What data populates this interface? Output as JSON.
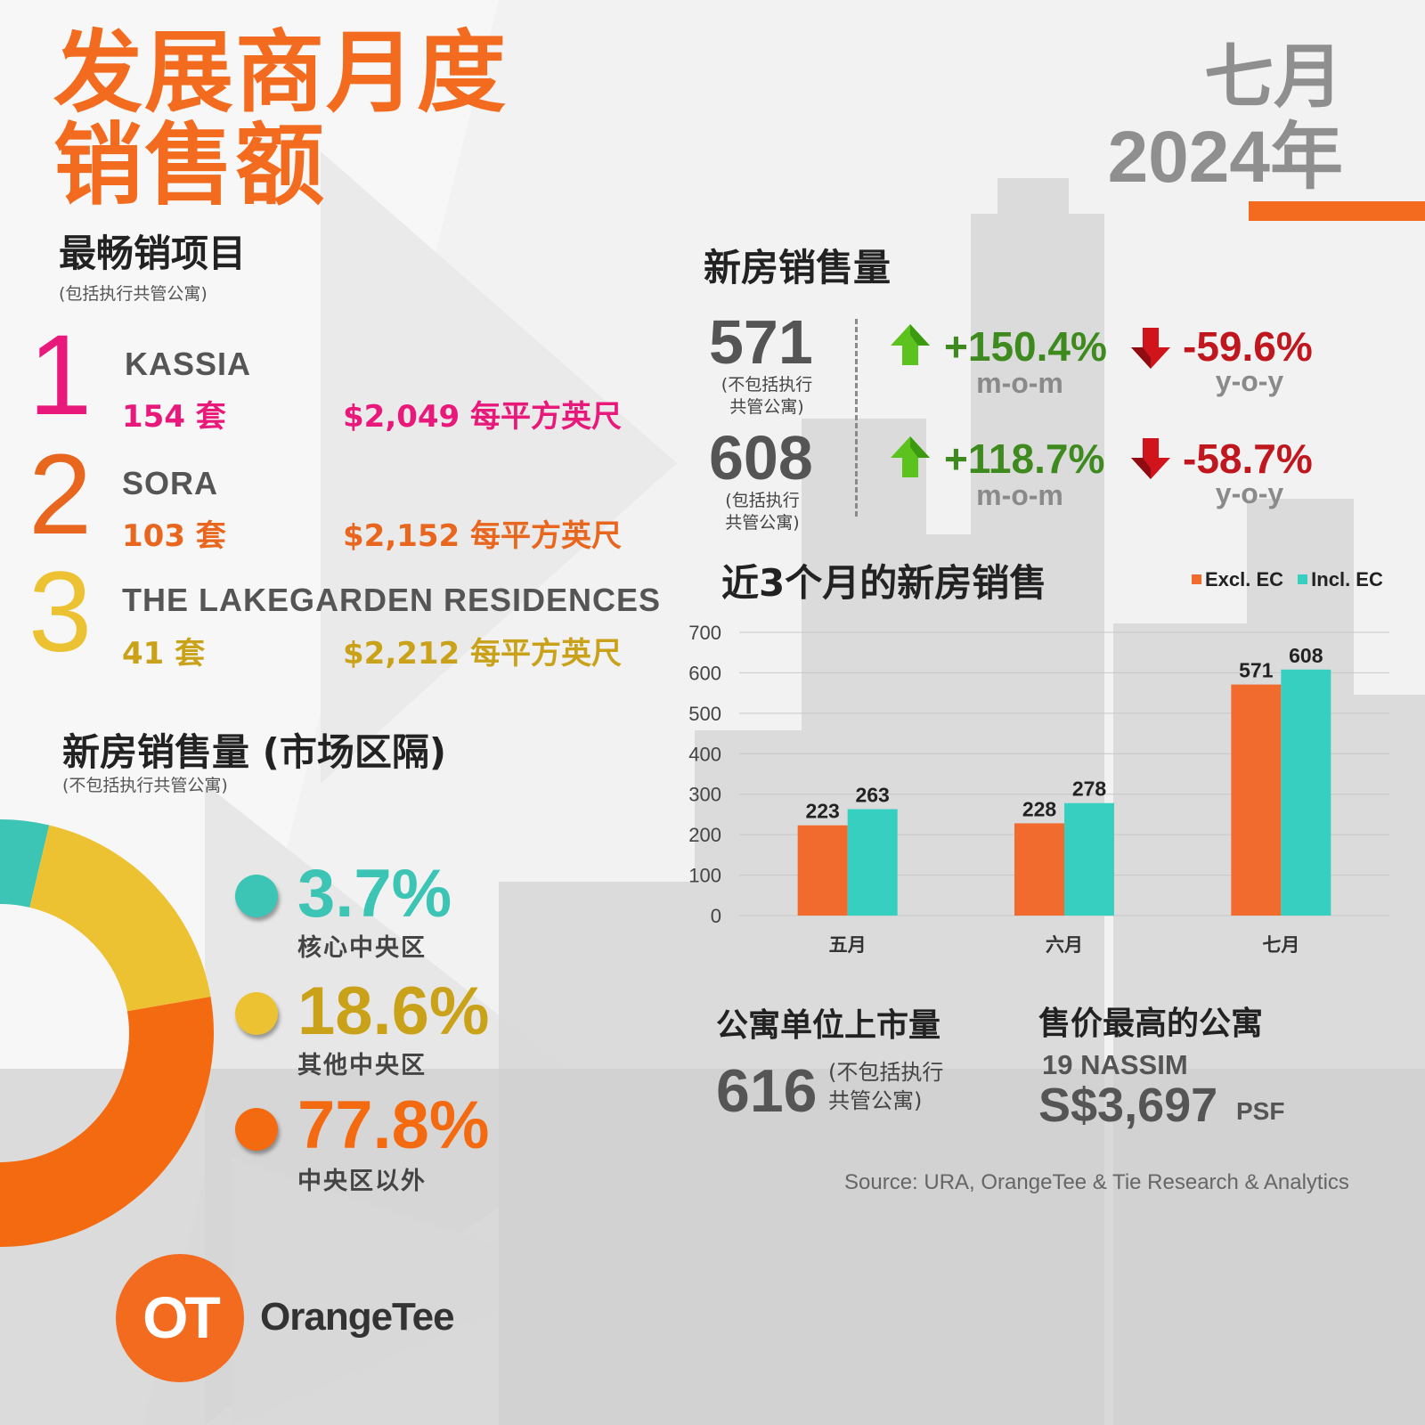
{
  "header": {
    "title_line1": "发展商月度",
    "title_line2": "销售额",
    "month": "七月",
    "year": "2024年"
  },
  "top_sellers": {
    "heading": "最畅销项目",
    "note": "(包括执行共管公寓)",
    "items": [
      {
        "rank": "1",
        "name": "KASSIA",
        "units": "154 套",
        "price": "$2,049 每平方英尺",
        "color": "#e8197a"
      },
      {
        "rank": "2",
        "name": "SORA",
        "units": "103 套",
        "price": "$2,152 每平方英尺",
        "color": "#e8661e"
      },
      {
        "rank": "3",
        "name": "THE LAKEGARDEN RESIDENCES",
        "units": "41 套",
        "price": "$2,212 每平方英尺",
        "color": "#c9a21a"
      }
    ]
  },
  "new_home_sales": {
    "heading": "新房销售量",
    "rows": [
      {
        "value": "571",
        "note_line1": "(不包括执行",
        "note_line2": "共管公寓)",
        "mom": "+150.4%",
        "mom_label": "m-o-m",
        "yoy": "-59.6%",
        "yoy_label": "y-o-y"
      },
      {
        "value": "608",
        "note_line1": "(包括执行",
        "note_line2": "共管公寓)",
        "mom": "+118.7%",
        "mom_label": "m-o-m",
        "yoy": "-58.7%",
        "yoy_label": "y-o-y"
      }
    ]
  },
  "market_segment": {
    "heading": "新房销售量 (市场区隔)",
    "note": "(不包括执行共管公寓)",
    "segments": [
      {
        "pct": "3.7%",
        "value": 3.7,
        "label": "核心中央区",
        "color": "#3cc4b4"
      },
      {
        "pct": "18.6%",
        "value": 18.6,
        "label": "其他中央区",
        "color": "#ecc233"
      },
      {
        "pct": "77.8%",
        "value": 77.8,
        "label": "中央区以外",
        "color": "#f46a10"
      }
    ]
  },
  "chart_title": "近3个月的新房销售",
  "chart_data": {
    "type": "bar",
    "categories": [
      "五月",
      "六月",
      "七月"
    ],
    "series": [
      {
        "name": "Excl. EC",
        "values": [
          223,
          228,
          571
        ],
        "color": "#f26b2e"
      },
      {
        "name": "Incl. EC",
        "values": [
          263,
          278,
          608
        ],
        "color": "#36cfc0"
      }
    ],
    "y_ticks": [
      "700",
      "600",
      "500",
      "400",
      "300",
      "200",
      "100",
      "0"
    ],
    "ylim": [
      0,
      700
    ],
    "grid": true,
    "legend": "top-right"
  },
  "supply": {
    "heading": "公寓单位上市量",
    "value": "616",
    "note_line1": "(不包括执行",
    "note_line2": "共管公寓)"
  },
  "top_price": {
    "heading": "售价最高的公寓",
    "project": "19 NASSIM",
    "price": "S$3,697",
    "unit": "PSF"
  },
  "source": "Source: URA, OrangeTee & Tie Research & Analytics",
  "brand": {
    "logo_text": "OT",
    "name": "OrangeTee"
  }
}
